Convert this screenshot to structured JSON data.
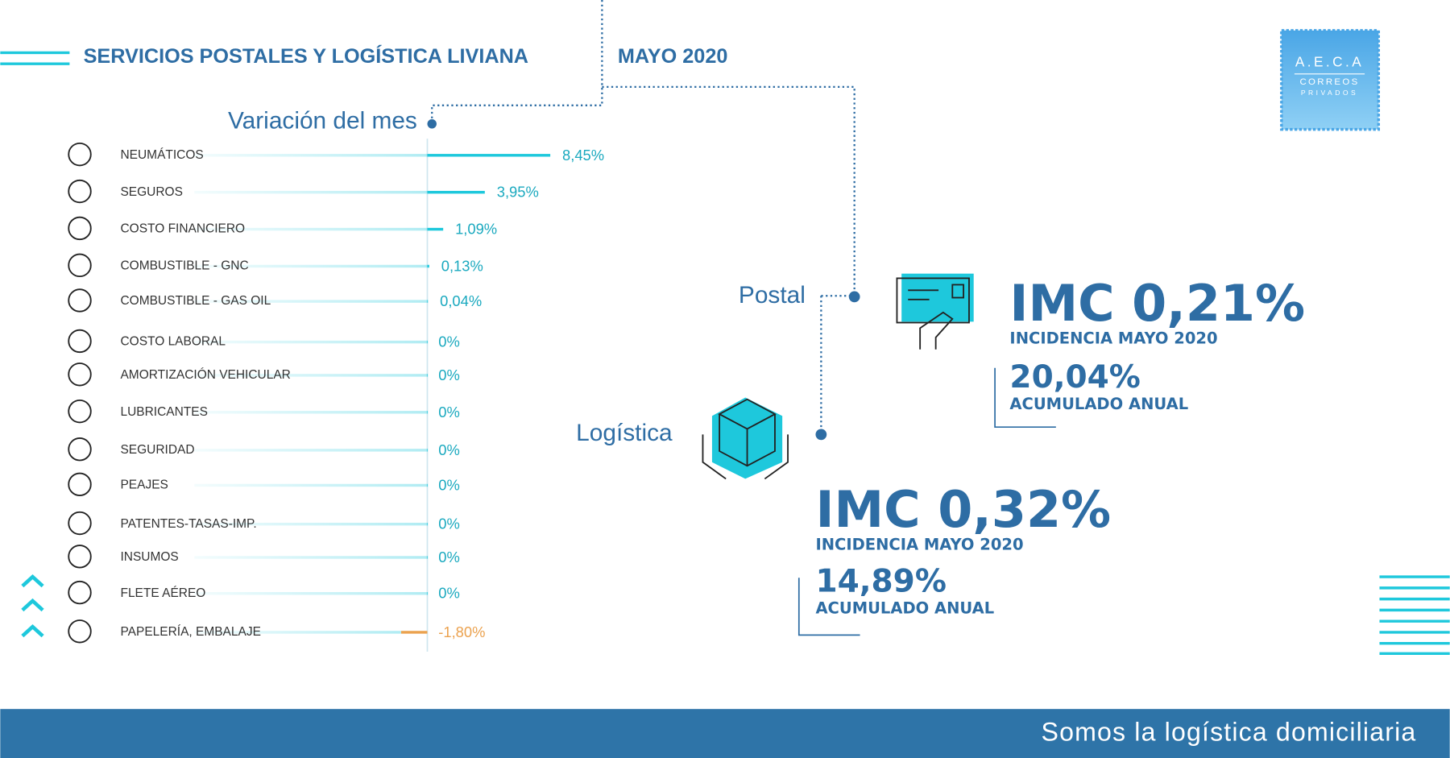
{
  "header": {
    "title": "SERVICIOS POSTALES Y LOGÍSTICA LIVIANA",
    "date": "MAYO 2020"
  },
  "logo": {
    "name": "A.E.C.A",
    "line1": "CORREOS",
    "line2": "PRIVADOS"
  },
  "chart_data": {
    "type": "bar",
    "orientation": "horizontal",
    "title": "Variación del mes",
    "categories": [
      "NEUMÁTICOS",
      "SEGUROS",
      "COSTO FINANCIERO",
      "COMBUSTIBLE - GNC",
      "COMBUSTIBLE - GAS OIL",
      "COSTO LABORAL",
      "AMORTIZACIÓN VEHICULAR",
      "LUBRICANTES",
      "SEGURIDAD",
      "PEAJES",
      "PATENTES-TASAS-IMP.",
      "INSUMOS",
      "FLETE AÉREO",
      "PAPELERÍA, EMBALAJE"
    ],
    "values": [
      8.45,
      3.95,
      1.09,
      0.13,
      0.04,
      0,
      0,
      0,
      0,
      0,
      0,
      0,
      0,
      -1.8
    ],
    "value_labels": [
      "8,45%",
      "3,95%",
      "1,09%",
      "0,13%",
      "0,04%",
      "0%",
      "0%",
      "0%",
      "0%",
      "0%",
      "0%",
      "0%",
      "0%",
      "-1,80%"
    ],
    "color": "#1ec8dc",
    "negative_color": "#eba24f"
  },
  "postal": {
    "label": "Postal",
    "imc": "IMC 0,21%",
    "incidence": "INCIDENCIA MAYO 2020",
    "annual": "20,04%",
    "annual_label": "ACUMULADO ANUAL"
  },
  "logistica": {
    "label": "Logística",
    "imc": "IMC 0,32%",
    "incidence": "INCIDENCIA MAYO 2020",
    "annual": "14,89%",
    "annual_label": "ACUMULADO ANUAL"
  },
  "footer": {
    "tagline": "Somos la logística domiciliaria"
  }
}
